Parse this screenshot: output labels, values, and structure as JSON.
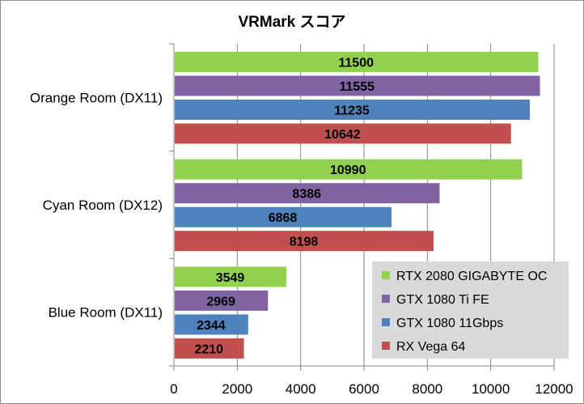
{
  "chart_data": {
    "type": "bar",
    "orientation": "horizontal",
    "title": "VRMark スコア",
    "categories": [
      "Orange Room (DX11)",
      "Cyan Room (DX12)",
      "Blue Room (DX11)"
    ],
    "series": [
      {
        "name": "RTX 2080 GIGABYTE OC",
        "color": "#92d050",
        "values": [
          11500,
          10990,
          3549
        ]
      },
      {
        "name": "GTX 1080 Ti FE",
        "color": "#8064a2",
        "values": [
          11555,
          8386,
          2969
        ]
      },
      {
        "name": "GTX 1080 11Gbps",
        "color": "#4f81bd",
        "values": [
          11235,
          6868,
          2344
        ]
      },
      {
        "name": "RX Vega 64",
        "color": "#c0504d",
        "values": [
          10642,
          8198,
          2210
        ]
      }
    ],
    "xlim": [
      0,
      12000
    ],
    "xticks": [
      0,
      2000,
      4000,
      6000,
      8000,
      10000,
      12000
    ],
    "grid": true,
    "legend_position": "bottom-right",
    "legend_background": "#d9d9d9"
  }
}
